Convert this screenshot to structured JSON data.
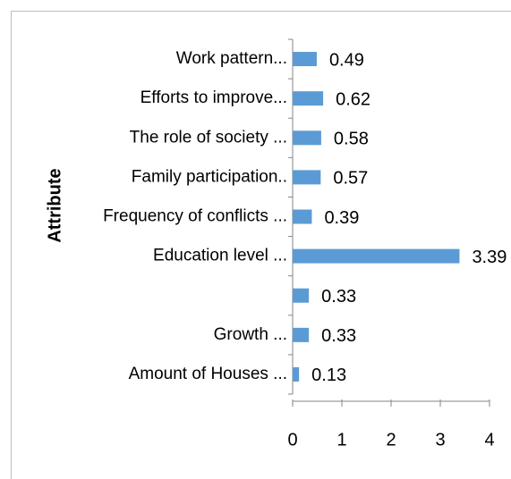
{
  "chart_data": {
    "type": "bar",
    "orientation": "horizontal",
    "y_label": "Attribute",
    "categories": [
      "Work pattern...",
      "Efforts to improve...",
      "The role of society ...",
      "Family participation..",
      "Frequency of conflicts ...",
      "Education level ...",
      null,
      "Growth ...",
      "Amount of Houses ..."
    ],
    "values": [
      0.49,
      0.62,
      0.58,
      0.57,
      0.39,
      3.39,
      0.33,
      0.33,
      0.13
    ],
    "color": "#5b9bd5",
    "xlim": [
      0,
      4
    ],
    "xticks": [
      0,
      1,
      2,
      3,
      4
    ],
    "grid": false
  }
}
